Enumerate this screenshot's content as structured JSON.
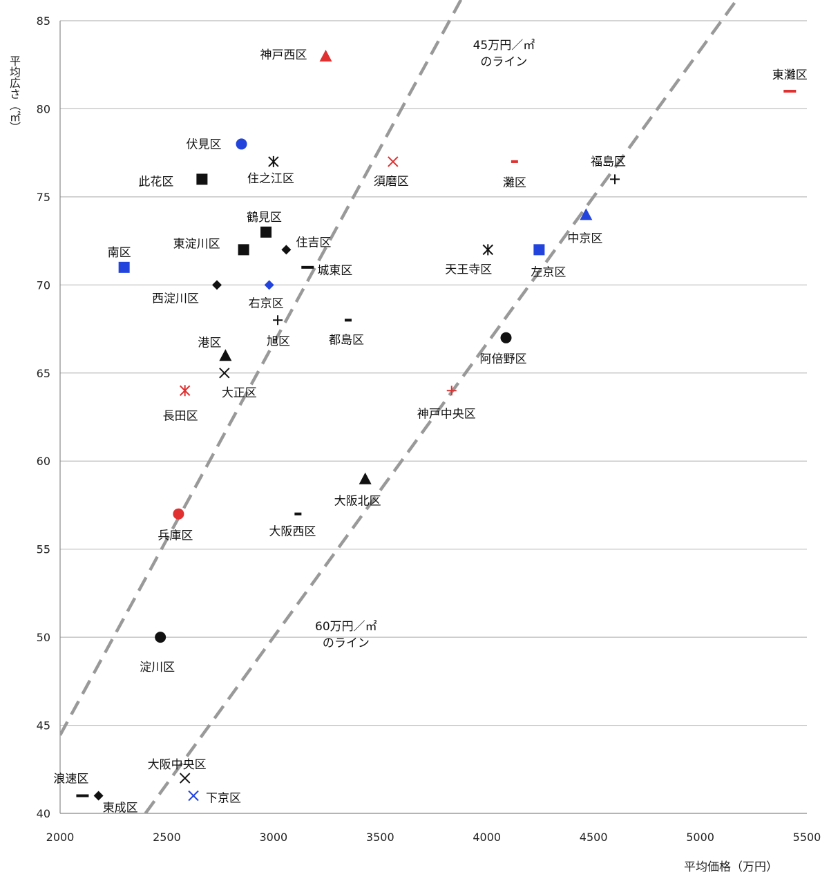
{
  "chart_data": {
    "type": "scatter",
    "title": "",
    "xlabel": "平均価格（万円）",
    "ylabel": "平均広さ（㎡）",
    "xlim": [
      2000,
      5500
    ],
    "ylim": [
      40,
      85
    ],
    "x_ticks": [
      "2000",
      "2500",
      "3000",
      "3500",
      "4000",
      "4500",
      "5000",
      "5500"
    ],
    "y_ticks": [
      "40",
      "45",
      "50",
      "55",
      "60",
      "65",
      "70",
      "75",
      "80",
      "85"
    ],
    "grid": "horizontal",
    "legend": "none",
    "colors": {
      "black": "#111111",
      "red": "#e03030",
      "blue": "#2244dd",
      "grid": "#bbbbbb",
      "ref_line": "#999999"
    },
    "reference_lines": [
      {
        "label_line1": "45万円／㎡",
        "label_line2": "のライン",
        "x": [
          2000,
          5000
        ],
        "y": [
          44.44,
          111.11
        ]
      },
      {
        "label_line1": "60万円／㎡",
        "label_line2": "のライン",
        "x": [
          2400,
          6000
        ],
        "y": [
          40,
          100
        ]
      }
    ],
    "points": [
      {
        "name": "神戸西区",
        "x": 3245,
        "y": 83,
        "marker": "triangle",
        "color": "red"
      },
      {
        "name": "東灘区",
        "x": 5420,
        "y": 81,
        "marker": "dash",
        "color": "red"
      },
      {
        "name": "伏見区",
        "x": 2850,
        "y": 78,
        "marker": "circle",
        "color": "blue"
      },
      {
        "name": "住之江区",
        "x": 3000,
        "y": 77,
        "marker": "asterisk",
        "color": "black"
      },
      {
        "name": "須磨区",
        "x": 3560,
        "y": 77,
        "marker": "x",
        "color": "red"
      },
      {
        "name": "灘区",
        "x": 4130,
        "y": 77,
        "marker": "dash-small",
        "color": "red"
      },
      {
        "name": "福島区",
        "x": 4600,
        "y": 76,
        "marker": "plus",
        "color": "black"
      },
      {
        "name": "此花区",
        "x": 2665,
        "y": 76,
        "marker": "square",
        "color": "black"
      },
      {
        "name": "中京区",
        "x": 4465,
        "y": 74,
        "marker": "triangle",
        "color": "blue"
      },
      {
        "name": "鶴見区",
        "x": 2965,
        "y": 73,
        "marker": "square",
        "color": "black"
      },
      {
        "name": "東淀川区",
        "x": 2860,
        "y": 72,
        "marker": "square",
        "color": "black"
      },
      {
        "name": "住吉区",
        "x": 3060,
        "y": 72,
        "marker": "diamond",
        "color": "black"
      },
      {
        "name": "天王寺区",
        "x": 4005,
        "y": 72,
        "marker": "asterisk",
        "color": "black"
      },
      {
        "name": "左京区",
        "x": 4245,
        "y": 72,
        "marker": "square",
        "color": "blue"
      },
      {
        "name": "南区",
        "x": 2300,
        "y": 71,
        "marker": "square",
        "color": "blue"
      },
      {
        "name": "城東区",
        "x": 3160,
        "y": 71,
        "marker": "dash",
        "color": "black"
      },
      {
        "name": "西淀川区",
        "x": 2735,
        "y": 70,
        "marker": "diamond",
        "color": "black"
      },
      {
        "name": "右京区",
        "x": 2980,
        "y": 70,
        "marker": "diamond",
        "color": "blue"
      },
      {
        "name": "旭区",
        "x": 3020,
        "y": 68,
        "marker": "plus",
        "color": "black"
      },
      {
        "name": "都島区",
        "x": 3350,
        "y": 68,
        "marker": "dash-small",
        "color": "black"
      },
      {
        "name": "阿倍野区",
        "x": 4090,
        "y": 67,
        "marker": "circle",
        "color": "black"
      },
      {
        "name": "港区",
        "x": 2775,
        "y": 66,
        "marker": "triangle",
        "color": "black"
      },
      {
        "name": "大正区",
        "x": 2770,
        "y": 65,
        "marker": "x",
        "color": "black"
      },
      {
        "name": "長田区",
        "x": 2585,
        "y": 64,
        "marker": "asterisk",
        "color": "red"
      },
      {
        "name": "神戸中央区",
        "x": 3835,
        "y": 64,
        "marker": "plus",
        "color": "red"
      },
      {
        "name": "大阪北区",
        "x": 3430,
        "y": 59,
        "marker": "triangle",
        "color": "black"
      },
      {
        "name": "兵庫区",
        "x": 2555,
        "y": 57,
        "marker": "circle",
        "color": "red"
      },
      {
        "name": "大阪西区",
        "x": 3115,
        "y": 57,
        "marker": "dash-small",
        "color": "black"
      },
      {
        "name": "淀川区",
        "x": 2470,
        "y": 50,
        "marker": "circle",
        "color": "black"
      },
      {
        "name": "大阪中央区",
        "x": 2585,
        "y": 42,
        "marker": "x",
        "color": "black"
      },
      {
        "name": "浪速区",
        "x": 2105,
        "y": 41,
        "marker": "dash",
        "color": "black"
      },
      {
        "name": "東成区",
        "x": 2180,
        "y": 41,
        "marker": "diamond",
        "color": "black"
      },
      {
        "name": "下京区",
        "x": 2625,
        "y": 41,
        "marker": "x",
        "color": "blue"
      }
    ]
  }
}
